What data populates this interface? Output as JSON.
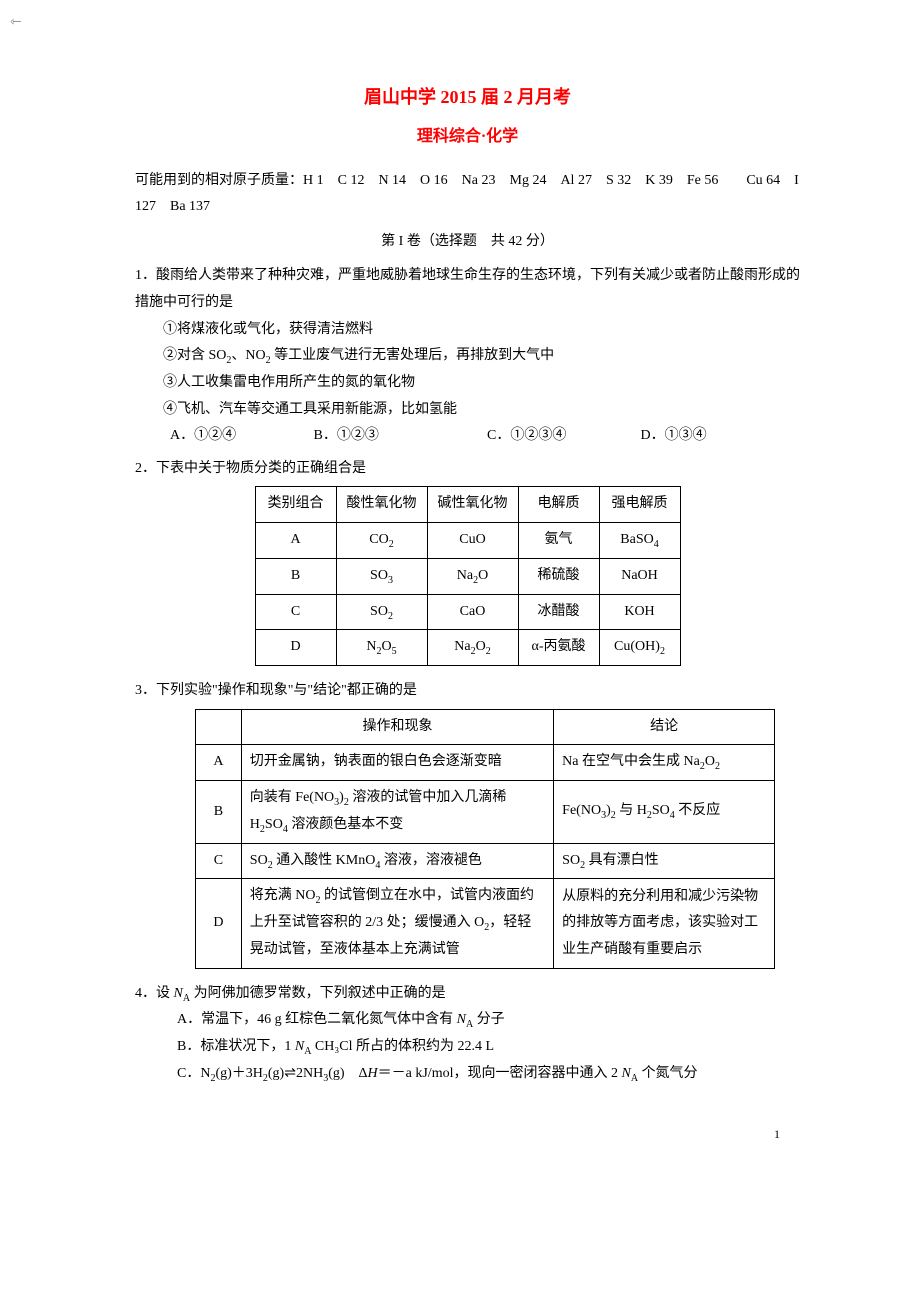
{
  "header": {
    "title": "眉山中学 2015 届 2 月月考",
    "subtitle": "理科综合·化学",
    "atomic_masses": "可能用到的相对原子质量：H 1　C 12　N 14　O 16　Na 23　Mg 24　Al 27　S 32　K 39　Fe 56　　Cu 64　I 127　Ba 137",
    "section": "第 I 卷（选择题　共 42 分）"
  },
  "q1": {
    "stem": "1．酸雨给人类带来了种种灾难，严重地威胁着地球生命生存的生态环境，下列有关减少或者防止酸雨形成的措施中可行的是",
    "c1": "①将煤液化或气化，获得清洁燃料",
    "c2_pre": "②对含 SO",
    "c2_mid": "、NO",
    "c2_post": " 等工业废气进行无害处理后，再排放到大气中",
    "c3": "③人工收集雷电作用所产生的氮的氧化物",
    "c4": "④飞机、汽车等交通工具采用新能源，比如氢能",
    "optA": "A．①②④",
    "optB": "B．①②③",
    "optC": "C．①②③④",
    "optD": "D．①③④"
  },
  "q2": {
    "stem": "2．下表中关于物质分类的正确组合是",
    "headers": [
      "类别组合",
      "酸性氧化物",
      "碱性氧化物",
      "电解质",
      "强电解质"
    ],
    "rows": [
      {
        "label": "A",
        "c1": "CO₂",
        "c2": "CuO",
        "c3": "氨气",
        "c4": "BaSO₄"
      },
      {
        "label": "B",
        "c1": "SO₃",
        "c2": "Na₂O",
        "c3": "稀硫酸",
        "c4": "NaOH"
      },
      {
        "label": "C",
        "c1": "SO₂",
        "c2": "CaO",
        "c3": "冰醋酸",
        "c4": "KOH"
      },
      {
        "label": "D",
        "c1": "N₂O₅",
        "c2": "Na₂O₂",
        "c3": "α-丙氨酸",
        "c4": "Cu(OH)₂"
      }
    ]
  },
  "q3": {
    "stem": "3．下列实验\"操作和现象\"与\"结论\"都正确的是",
    "h1": "操作和现象",
    "h2": "结论",
    "rows": [
      {
        "label": "A",
        "op": "切开金属钠，钠表面的银白色会逐渐变暗",
        "conc": "Na 在空气中会生成 Na₂O₂"
      },
      {
        "label": "B",
        "op": "向装有 Fe(NO₃)₂ 溶液的试管中加入几滴稀 H₂SO₄ 溶液颜色基本不变",
        "conc": "Fe(NO₃)₂ 与 H₂SO₄ 不反应"
      },
      {
        "label": "C",
        "op": "SO₂ 通入酸性 KMnO₄ 溶液，溶液褪色",
        "conc": "SO₂ 具有漂白性"
      },
      {
        "label": "D",
        "op": "将充满 NO₂ 的试管倒立在水中，试管内液面约上升至试管容积的 2/3 处；缓慢通入 O₂，轻轻晃动试管，至液体基本上充满试管",
        "conc": "从原料的充分利用和减少污染物的排放等方面考虑，该实验对工业生产硝酸有重要启示"
      }
    ]
  },
  "q4": {
    "stem_pre": "4．设 ",
    "stem_na": "N",
    "stem_post": " 为阿佛加德罗常数，下列叙述中正确的是",
    "optA_pre": "A．常温下，46 g 红棕色二氧化氮气体中含有 ",
    "optA_post": " 分子",
    "optB_pre": "B．标准状况下，1 ",
    "optB_post": " CH₃Cl 所占的体积约为 22.4 L",
    "optC_pre": "C．N₂(g)＋3H₂(g)⇌2NH₃(g)　Δ",
    "optC_h": "H",
    "optC_mid": "＝－a kJ/mol，现向一密闭容器中通入 2 ",
    "optC_post": " 个氮气分"
  },
  "page_number": "1"
}
